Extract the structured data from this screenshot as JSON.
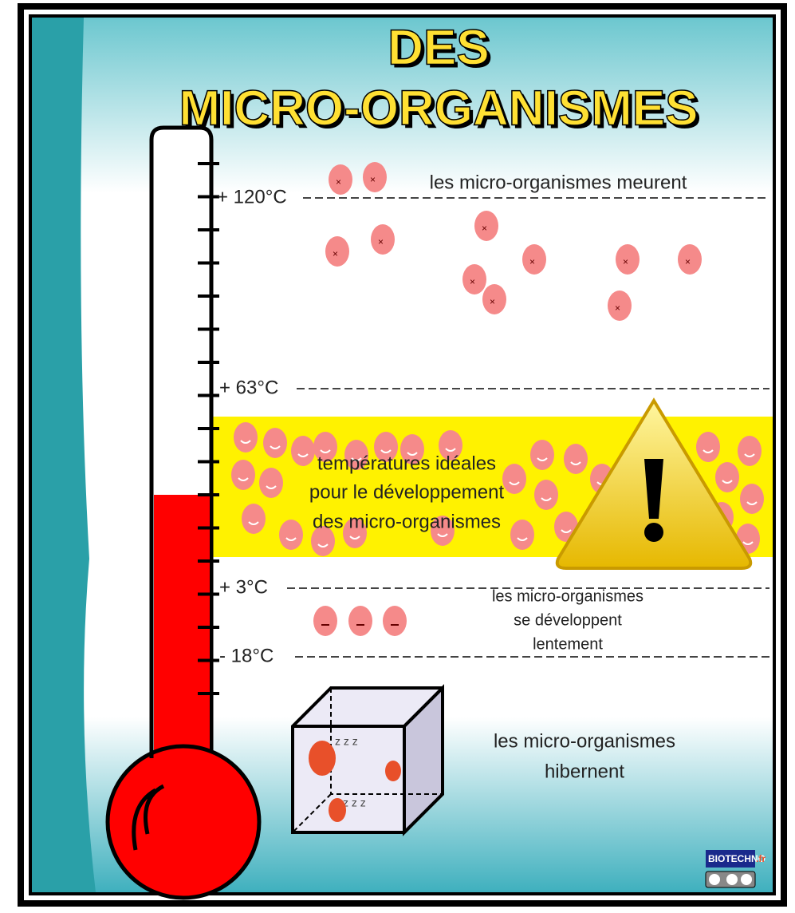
{
  "header": {
    "title": [
      "DES",
      "MICRO-ORGANISMES"
    ]
  },
  "thermometer": {
    "levels": [
      {
        "label": "+ 120°C"
      },
      {
        "label": "+ 63°C"
      },
      {
        "label": "+ 3°C"
      },
      {
        "label": "- 18°C"
      }
    ]
  },
  "zones": [
    {
      "lines": [
        "les micro-organismes meurent"
      ]
    },
    {
      "lines": [
        "températures idéales",
        "pour le développement",
        "des micro-organismes"
      ]
    },
    {
      "lines": [
        "les micro-organismes",
        "se développent",
        "lentement"
      ]
    },
    {
      "lines": [
        "les micro-organismes",
        "hibernent"
      ]
    }
  ],
  "sleep": [
    "z z z",
    "z z z"
  ],
  "logo": {
    "name": "BIOTECHNO",
    "domain": ".fr"
  }
}
